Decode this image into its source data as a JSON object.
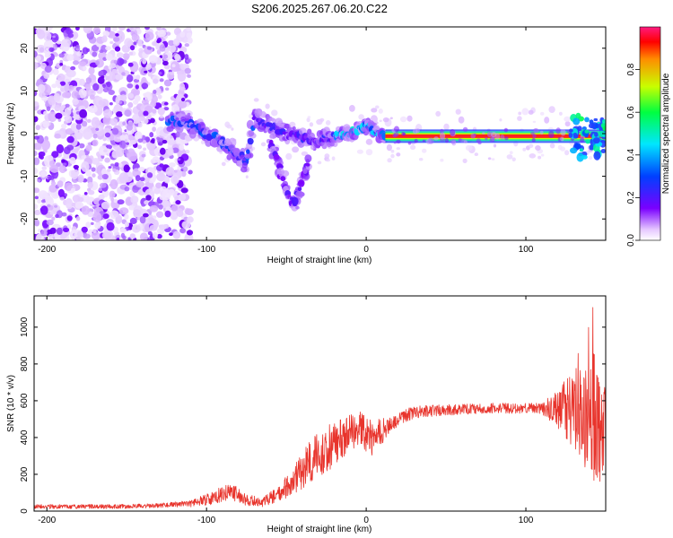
{
  "title": "S206.2025.267.06.20.C22",
  "chart_data": [
    {
      "type": "heatmap",
      "xlabel": "Height of straight line (km)",
      "ylabel": "Frequency (Hz)",
      "xlim": [
        -208,
        150
      ],
      "ylim": [
        -25,
        25
      ],
      "xticks": [
        -200,
        -100,
        0,
        100
      ],
      "yticks": [
        -20,
        -10,
        0,
        10,
        20
      ],
      "grid": false,
      "ridge": [
        {
          "x": -120,
          "y": 3
        },
        {
          "x": -110,
          "y": 2
        },
        {
          "x": -100,
          "y": 0
        },
        {
          "x": -90,
          "y": -2
        },
        {
          "x": -80,
          "y": -5
        },
        {
          "x": -75,
          "y": -7
        },
        {
          "x": -70,
          "y": 3.5
        },
        {
          "x": -60,
          "y": 2
        },
        {
          "x": -50,
          "y": 0
        },
        {
          "x": -40,
          "y": -1
        },
        {
          "x": -30,
          "y": -2
        },
        {
          "x": -20,
          "y": -0.5
        },
        {
          "x": -10,
          "y": 0
        },
        {
          "x": 0,
          "y": 2
        },
        {
          "x": 10,
          "y": -0.5
        },
        {
          "x": 50,
          "y": -0.8
        },
        {
          "x": 100,
          "y": -0.3
        },
        {
          "x": 130,
          "y": 0
        },
        {
          "x": 150,
          "y": -1
        }
      ],
      "branch": [
        {
          "x": -60,
          "y": -2
        },
        {
          "x": -55,
          "y": -7
        },
        {
          "x": -50,
          "y": -13
        },
        {
          "x": -45,
          "y": -17
        },
        {
          "x": -40,
          "y": -11
        },
        {
          "x": -35,
          "y": -6
        }
      ]
    },
    {
      "type": "colorbar",
      "label": "Normalized spectral amplitude",
      "range": [
        0.0,
        1.0
      ],
      "ticks": [
        "0.0",
        "0.2",
        "0.4",
        "0.6",
        "0.8"
      ]
    },
    {
      "type": "line",
      "xlabel": "Height of straight line (km)",
      "ylabel": "SNR (10 * v/v)",
      "xlim": [
        -208,
        150
      ],
      "ylim": [
        0,
        1170
      ],
      "xticks": [
        -200,
        -100,
        0,
        100
      ],
      "yticks": [
        0,
        200,
        400,
        600,
        800,
        1000
      ],
      "grid": false,
      "series": [
        {
          "name": "SNR",
          "color": "#e8342c",
          "x": [
            -208,
            -180,
            -150,
            -130,
            -110,
            -95,
            -85,
            -75,
            -65,
            -55,
            -45,
            -35,
            -25,
            -15,
            -5,
            0,
            5,
            15,
            30,
            50,
            80,
            110,
            130,
            140,
            150
          ],
          "y": [
            25,
            25,
            25,
            30,
            40,
            75,
            110,
            60,
            50,
            90,
            170,
            270,
            330,
            400,
            440,
            430,
            400,
            470,
            540,
            550,
            560,
            560,
            560,
            480,
            420
          ],
          "noise": [
            12,
            12,
            12,
            12,
            18,
            38,
            48,
            32,
            28,
            45,
            80,
            120,
            130,
            120,
            110,
            120,
            100,
            40,
            35,
            30,
            28,
            30,
            220,
            320,
            260
          ]
        }
      ]
    }
  ]
}
